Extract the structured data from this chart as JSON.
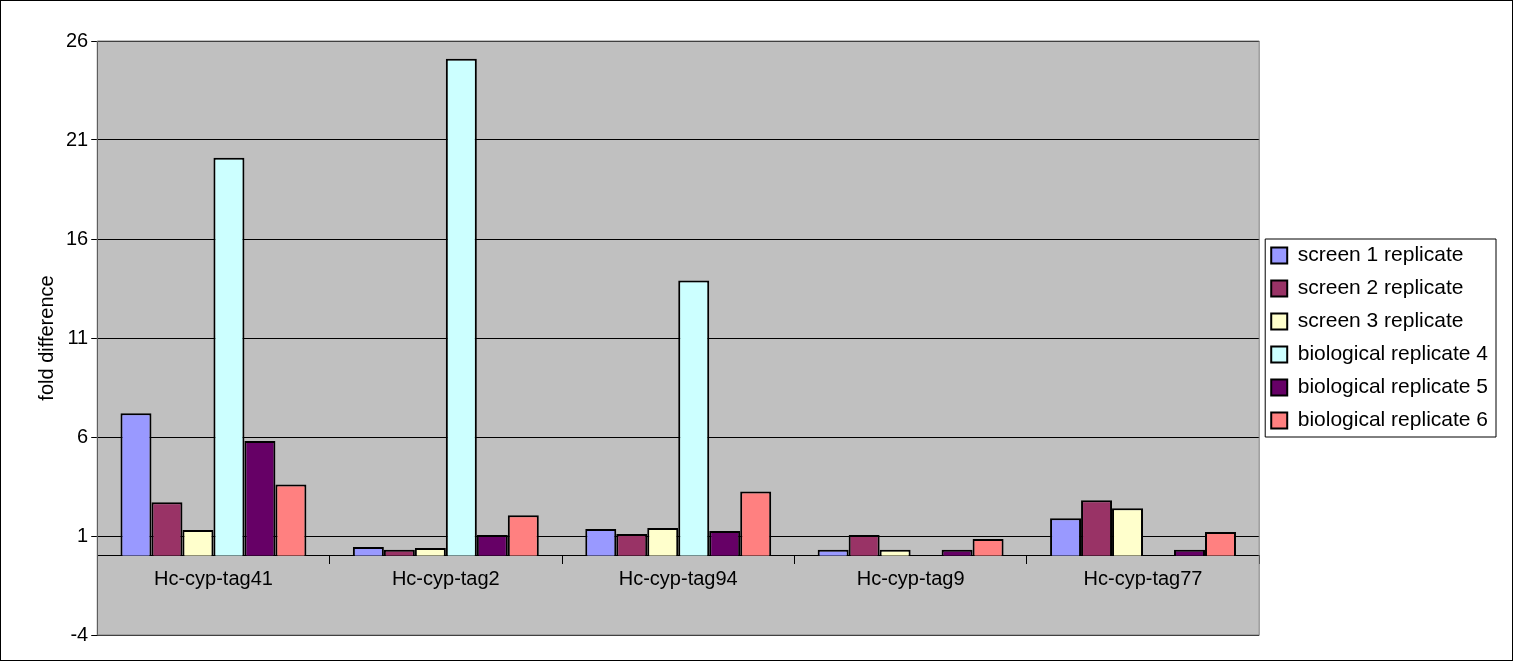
{
  "chart_data": {
    "type": "bar",
    "ylabel": "fold difference",
    "categories": [
      "Hc-cyp-tag41",
      "Hc-cyp-tag2",
      "Hc-cyp-tag94",
      "Hc-cyp-tag9",
      "Hc-cyp-tag77"
    ],
    "series": [
      {
        "name": "screen 1 replicate",
        "color": "#9999ff",
        "values": [
          7.2,
          0.45,
          1.35,
          0.3,
          1.9
        ]
      },
      {
        "name": "screen 2 replicate",
        "color": "#993366",
        "values": [
          2.7,
          0.3,
          1.1,
          1.05,
          2.8
        ]
      },
      {
        "name": "screen 3 replicate",
        "color": "#ffffcc",
        "values": [
          1.3,
          0.4,
          1.4,
          0.3,
          2.4
        ]
      },
      {
        "name": "biological replicate 4",
        "color": "#ccffff",
        "values": [
          20.1,
          25.1,
          13.9,
          null,
          null
        ]
      },
      {
        "name": "biological replicate 5",
        "color": "#660066",
        "values": [
          5.8,
          1.05,
          1.25,
          0.3,
          0.3
        ]
      },
      {
        "name": "biological replicate 6",
        "color": "#ff8080",
        "values": [
          3.6,
          2.05,
          3.25,
          0.85,
          1.2
        ]
      }
    ],
    "ylim": [
      -4,
      26
    ],
    "yticks": [
      -4,
      1,
      6,
      11,
      16,
      21,
      26
    ],
    "grid": "y",
    "legend": "right"
  }
}
